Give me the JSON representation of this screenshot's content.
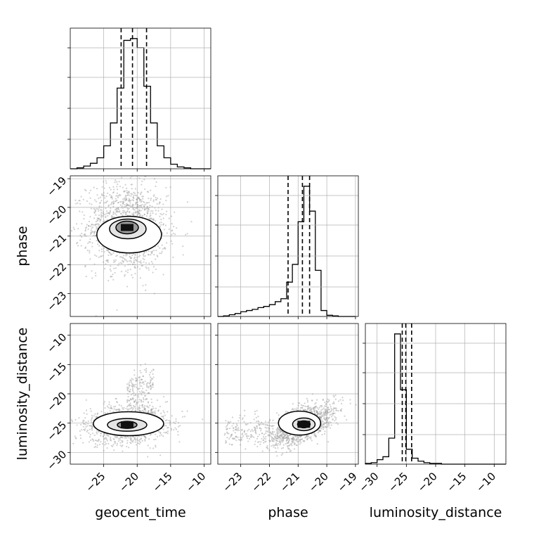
{
  "chart_data": {
    "type": "scatter",
    "kind": "corner-plot",
    "title": "",
    "parameters": [
      "geocent_time",
      "phase",
      "luminosity_distance"
    ],
    "axis_labels": {
      "geocent_time": "geocent_time",
      "phase": "phase",
      "luminosity_distance": "luminosity_distance"
    },
    "ranges": {
      "geocent_time": [
        -30,
        -9
      ],
      "phase": [
        -23.8,
        -18.9
      ],
      "luminosity_distance": [
        -32,
        -8
      ]
    },
    "ticks": {
      "geocent_time": [
        -25,
        -20,
        -15,
        -10
      ],
      "phase": [
        -23,
        -22,
        -21,
        -20,
        -19
      ],
      "luminosity_distance": [
        -30,
        -25,
        -20,
        -15,
        -10
      ]
    },
    "tick_labels": {
      "geocent_time": [
        "−25",
        "−20",
        "−15",
        "−10"
      ],
      "phase_bottom": [
        "−23",
        "−22",
        "−21",
        "−20",
        "−19"
      ],
      "phase_left": [
        "−23",
        "−22",
        "−21",
        "−20",
        "−19"
      ],
      "luminosity_distance_bottom": [
        "−30",
        "−25",
        "−20",
        "−15",
        "−10"
      ],
      "luminosity_distance_left": [
        "−30",
        "−25",
        "−20",
        "−15",
        "−10"
      ]
    },
    "quantiles": {
      "geocent_time": [
        -22.4,
        -20.7,
        -18.6
      ],
      "phase": [
        -21.35,
        -20.85,
        -20.6
      ],
      "luminosity_distance": [
        -25.7,
        -25.1,
        -24.1
      ]
    },
    "histograms": {
      "geocent_time": {
        "edges": [
          -30,
          -29,
          -28,
          -27,
          -26,
          -25,
          -24,
          -23,
          -22,
          -21,
          -20,
          -19,
          -18,
          -17,
          -16,
          -15,
          -14,
          -13,
          -12,
          -11,
          -10,
          -9
        ],
        "counts": [
          0,
          1,
          3,
          6,
          12,
          25,
          50,
          88,
          140,
          142,
          132,
          90,
          50,
          25,
          12,
          5,
          2,
          1,
          0,
          0,
          0
        ]
      },
      "phase": {
        "edges": [
          -23.8,
          -23.6,
          -23.4,
          -23.2,
          -23.0,
          -22.8,
          -22.6,
          -22.4,
          -22.2,
          -22.0,
          -21.8,
          -21.6,
          -21.4,
          -21.2,
          -21.0,
          -20.8,
          -20.6,
          -20.4,
          -20.2,
          -20.0,
          -19.8,
          -19.6,
          -19.4,
          -19.2,
          -19.0
        ],
        "counts": [
          0,
          1,
          3,
          5,
          8,
          10,
          12,
          15,
          17,
          20,
          25,
          30,
          58,
          88,
          160,
          220,
          178,
          78,
          10,
          2,
          1,
          0,
          0,
          0
        ]
      },
      "luminosity_distance": {
        "edges": [
          -32,
          -31,
          -30,
          -29,
          -28,
          -27,
          -26,
          -25,
          -24,
          -23,
          -22,
          -21,
          -20,
          -19,
          -18,
          -17,
          -16,
          -15,
          -14,
          -13,
          -12,
          -11,
          -10,
          -9,
          -8
        ],
        "counts": [
          1,
          2,
          6,
          10,
          35,
          175,
          100,
          20,
          8,
          4,
          2,
          1,
          1,
          0,
          0,
          0,
          0,
          0,
          0,
          0,
          0,
          0,
          0,
          0
        ]
      }
    },
    "joint_peaks": {
      "geocent_time_vs_phase": {
        "x": -21.5,
        "y": -20.7
      },
      "geocent_time_vs_luminosity_distance": {
        "x": -21.5,
        "y": -25.3
      },
      "phase_vs_luminosity_distance": {
        "x": -20.8,
        "y": -25.2
      }
    },
    "scatter_color": "#9a9a9a",
    "line_color": "#000000",
    "grid": true
  }
}
